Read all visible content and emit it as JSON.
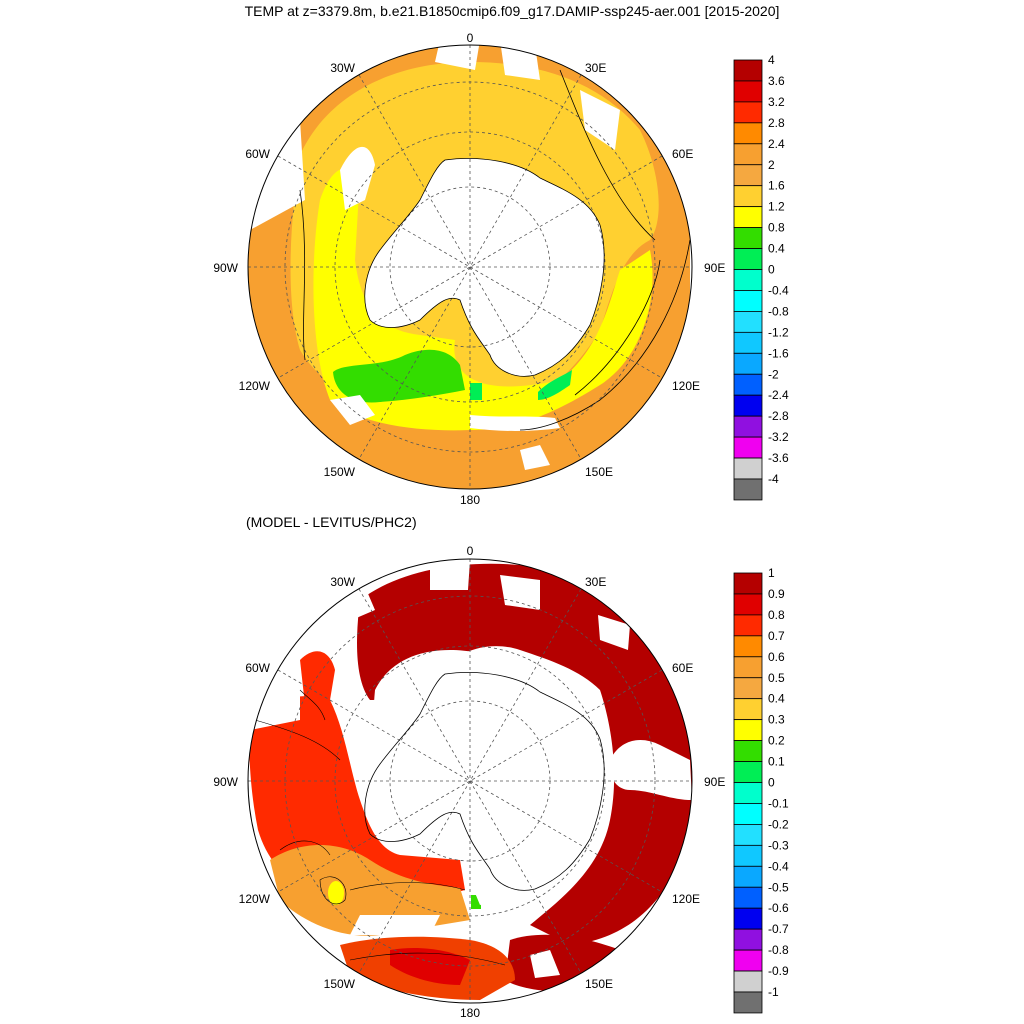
{
  "title": "TEMP at z=3379.8m, b.e21.B1850cmip6.f09_g17.DAMIP-ssp245-aer.001 [2015-2020]",
  "subtitle": "(MODEL - LEVITUS/PHC2)",
  "longitude_labels": [
    "0",
    "30E",
    "60E",
    "90E",
    "120E",
    "150E",
    "180",
    "150W",
    "120W",
    "90W",
    "60W",
    "30W"
  ],
  "colorbars": [
    {
      "labels": [
        "4",
        "3.6",
        "3.2",
        "2.8",
        "2.4",
        "2",
        "1.6",
        "1.2",
        "0.8",
        "0.4",
        "0",
        "-0.4",
        "-0.8",
        "-1.2",
        "-1.6",
        "-2",
        "-2.4",
        "-2.8",
        "-3.2",
        "-3.6",
        "-4"
      ],
      "colors": [
        "#b40000",
        "#e00000",
        "#ff2a00",
        "#ff8a00",
        "#f7a030",
        "#f5a840",
        "#ffd030",
        "#ffff00",
        "#33dd00",
        "#00ee55",
        "#00ffcc",
        "#00ffff",
        "#22e0ff",
        "#10c8ff",
        "#0aa8ff",
        "#0060ff",
        "#0000f0",
        "#9010e0",
        "#f000f0",
        "#d0d0d0",
        "#707070"
      ]
    },
    {
      "labels": [
        "1",
        "0.9",
        "0.8",
        "0.7",
        "0.6",
        "0.5",
        "0.4",
        "0.3",
        "0.2",
        "0.1",
        "0",
        "-0.1",
        "-0.2",
        "-0.3",
        "-0.4",
        "-0.5",
        "-0.6",
        "-0.7",
        "-0.8",
        "-0.9",
        "-1"
      ],
      "colors": [
        "#b40000",
        "#e00000",
        "#ff2a00",
        "#ff8a00",
        "#f7a030",
        "#f5a840",
        "#ffd030",
        "#ffff00",
        "#33dd00",
        "#00ee55",
        "#00ffcc",
        "#00ffff",
        "#22e0ff",
        "#10c8ff",
        "#0aa8ff",
        "#0060ff",
        "#0000f0",
        "#9010e0",
        "#f000f0",
        "#d0d0d0",
        "#707070"
      ]
    }
  ],
  "colors": {
    "yellow": "#ffff00",
    "light_orange": "#ffd030",
    "orange": "#f7a030",
    "green": "#33dd00",
    "bright_green": "#00ee55",
    "dark_red": "#b40000",
    "red": "#ff2a00",
    "orange_red": "#f04000"
  }
}
